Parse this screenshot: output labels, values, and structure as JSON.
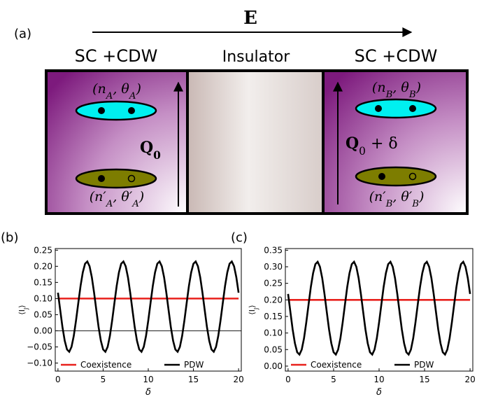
{
  "panel_a": {
    "label": "(a)",
    "field": "E",
    "regions": [
      "SC +CDW",
      "Insulator",
      "SC +CDW"
    ],
    "left": {
      "top": [
        "(n",
        "A",
        ", θ",
        "A",
        ")"
      ],
      "bottom": [
        "(n′",
        "A",
        ", θ′",
        "A",
        ")"
      ],
      "q": [
        "Q",
        "0"
      ]
    },
    "right": {
      "top": [
        "(n",
        "B",
        ", θ",
        "B",
        ")"
      ],
      "bottom": [
        "(n′",
        "B",
        ", θ′",
        "B",
        ")"
      ],
      "q": [
        "Q",
        "0",
        " + δ"
      ]
    }
  },
  "chart_data": [
    {
      "type": "line",
      "label": "(b)",
      "xlabel": "δ",
      "ylabel": [
        "⟨I",
        "J",
        "⟩"
      ],
      "xlim": [
        -0.3,
        20.3
      ],
      "xticks": [
        0,
        5,
        10,
        15,
        20
      ],
      "ylim": [
        -0.125,
        0.255
      ],
      "yticks": [
        {
          "value": -0.1,
          "label": "−0.10"
        },
        {
          "value": -0.05,
          "label": "−0.05"
        },
        {
          "value": 0,
          "label": "0.00"
        },
        0.05,
        {
          "value": 0.1,
          "label": "0.10"
        },
        0.15,
        {
          "value": 0.2,
          "label": "0.20"
        },
        0.25
      ],
      "zero_line": true,
      "legend": "bottom",
      "series": [
        {
          "name": "Coexistence",
          "color": "#e8211c",
          "x": [
            0,
            20
          ],
          "values": [
            0.1,
            0.1
          ]
        },
        {
          "name": "PDW",
          "color": "#000000",
          "x": [
            0,
            0.25,
            0.5,
            0.75,
            1,
            1.25,
            1.5,
            1.75,
            2,
            2.25,
            2.5,
            2.75,
            3,
            3.25,
            3.5,
            3.75,
            4,
            4.25,
            4.5,
            4.75,
            5,
            5.25,
            5.5,
            5.75,
            6,
            6.25,
            6.5,
            6.75,
            7,
            7.25,
            7.5,
            7.75,
            8,
            8.25,
            8.5,
            8.75,
            9,
            9.25,
            9.5,
            9.75,
            10,
            10.25,
            10.5,
            10.75,
            11,
            11.25,
            11.5,
            11.75,
            12,
            12.25,
            12.5,
            12.75,
            13,
            13.25,
            13.5,
            13.75,
            14,
            14.25,
            14.5,
            14.75,
            15,
            15.25,
            15.5,
            15.75,
            16,
            16.25,
            16.5,
            16.75,
            17,
            17.25,
            17.5,
            17.75,
            18,
            18.25,
            18.5,
            18.75,
            19,
            19.25,
            19.5,
            19.75,
            20
          ],
          "values": [
            0.118,
            0.064,
            0.011,
            -0.031,
            -0.058,
            -0.065,
            -0.05,
            -0.016,
            0.032,
            0.086,
            0.139,
            0.181,
            0.208,
            0.215,
            0.2,
            0.166,
            0.118,
            0.064,
            0.011,
            -0.031,
            -0.058,
            -0.065,
            -0.05,
            -0.016,
            0.032,
            0.086,
            0.139,
            0.181,
            0.208,
            0.215,
            0.2,
            0.166,
            0.118,
            0.064,
            0.011,
            -0.031,
            -0.058,
            -0.065,
            -0.05,
            -0.016,
            0.032,
            0.086,
            0.139,
            0.181,
            0.208,
            0.215,
            0.2,
            0.166,
            0.118,
            0.064,
            0.011,
            -0.031,
            -0.058,
            -0.065,
            -0.05,
            -0.016,
            0.032,
            0.086,
            0.139,
            0.181,
            0.208,
            0.215,
            0.2,
            0.166,
            0.118,
            0.064,
            0.011,
            -0.031,
            -0.058,
            -0.065,
            -0.05,
            -0.016,
            0.032,
            0.086,
            0.139,
            0.181,
            0.208,
            0.215,
            0.2,
            0.166,
            0.118
          ]
        }
      ]
    },
    {
      "type": "line",
      "label": "(c)",
      "xlabel": "δ",
      "ylabel": [
        "⟨I",
        "J",
        "⟩"
      ],
      "xlim": [
        -0.3,
        20.3
      ],
      "xticks": [
        0,
        5,
        10,
        15,
        20
      ],
      "ylim": [
        -0.015,
        0.355
      ],
      "yticks": [
        {
          "value": 0,
          "label": "0.00"
        },
        0.05,
        {
          "value": 0.1,
          "label": "0.10"
        },
        0.15,
        {
          "value": 0.2,
          "label": "0.20"
        },
        0.25,
        {
          "value": 0.3,
          "label": "0.30"
        },
        0.35
      ],
      "zero_line": false,
      "legend": "bottom",
      "series": [
        {
          "name": "Coexistence",
          "color": "#e8211c",
          "x": [
            0,
            20
          ],
          "values": [
            0.2,
            0.2
          ]
        },
        {
          "name": "PDW",
          "color": "#000000",
          "x": [
            0,
            0.25,
            0.5,
            0.75,
            1,
            1.25,
            1.5,
            1.75,
            2,
            2.25,
            2.5,
            2.75,
            3,
            3.25,
            3.5,
            3.75,
            4,
            4.25,
            4.5,
            4.75,
            5,
            5.25,
            5.5,
            5.75,
            6,
            6.25,
            6.5,
            6.75,
            7,
            7.25,
            7.5,
            7.75,
            8,
            8.25,
            8.5,
            8.75,
            9,
            9.25,
            9.5,
            9.75,
            10,
            10.25,
            10.5,
            10.75,
            11,
            11.25,
            11.5,
            11.75,
            12,
            12.25,
            12.5,
            12.75,
            13,
            13.25,
            13.5,
            13.75,
            14,
            14.25,
            14.5,
            14.75,
            15,
            15.25,
            15.5,
            15.75,
            16,
            16.25,
            16.5,
            16.75,
            17,
            17.25,
            17.5,
            17.75,
            18,
            18.25,
            18.5,
            18.75,
            19,
            19.25,
            19.5,
            19.75,
            20
          ],
          "values": [
            0.218,
            0.164,
            0.111,
            0.069,
            0.042,
            0.035,
            0.05,
            0.084,
            0.132,
            0.186,
            0.239,
            0.281,
            0.308,
            0.315,
            0.3,
            0.266,
            0.218,
            0.164,
            0.111,
            0.069,
            0.042,
            0.035,
            0.05,
            0.084,
            0.132,
            0.186,
            0.239,
            0.281,
            0.308,
            0.315,
            0.3,
            0.266,
            0.218,
            0.164,
            0.111,
            0.069,
            0.042,
            0.035,
            0.05,
            0.084,
            0.132,
            0.186,
            0.239,
            0.281,
            0.308,
            0.315,
            0.3,
            0.266,
            0.218,
            0.164,
            0.111,
            0.069,
            0.042,
            0.035,
            0.05,
            0.084,
            0.132,
            0.186,
            0.239,
            0.281,
            0.308,
            0.315,
            0.3,
            0.266,
            0.218,
            0.164,
            0.111,
            0.069,
            0.042,
            0.035,
            0.05,
            0.084,
            0.132,
            0.186,
            0.239,
            0.281,
            0.308,
            0.315,
            0.3,
            0.266,
            0.218
          ]
        }
      ]
    }
  ]
}
